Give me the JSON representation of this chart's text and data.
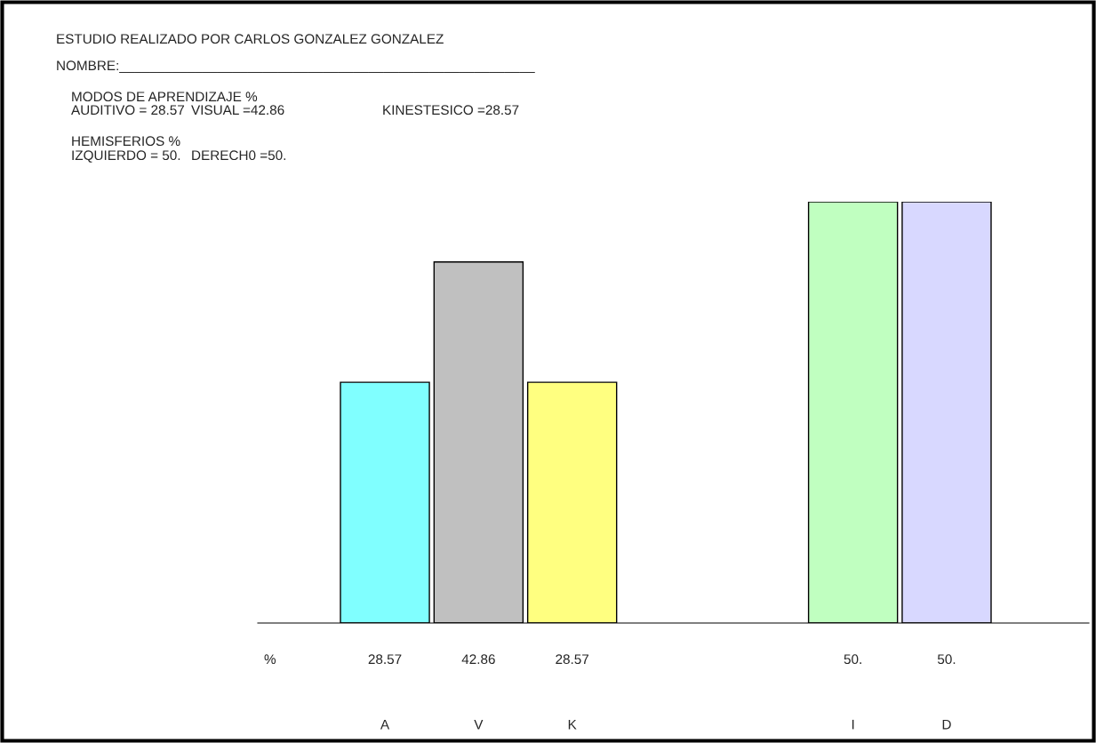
{
  "chart_data": {
    "type": "bar",
    "title": "ESTUDIO REALIZADO POR CARLOS GONZALEZ GONZALEZ",
    "subtitle": "NOMBRE:_______________________________________________________",
    "annotations": [
      "MODOS DE APRENDIZAJE %",
      "AUDITIVO = 28.57",
      "VISUAL =42.86",
      "KINESTESICO =28.57",
      "HEMISFERIOS %",
      "IZQUIERDO = 50.",
      "DERECH0 =50.",
      "%"
    ],
    "categories": [
      "A",
      "V",
      "K",
      null,
      null,
      "I",
      "D"
    ],
    "values": [
      28.57,
      42.86,
      28.57,
      null,
      null,
      50,
      50
    ],
    "colors": [
      "#80ffff",
      "#c0c0c0",
      "#ffff80",
      null,
      null,
      "#c0ffc0",
      "#d8d8ff"
    ],
    "value_labels": [
      "28.57",
      "42.86",
      "28.57",
      null,
      null,
      "50.",
      "50."
    ],
    "grid": false,
    "legend": false
  }
}
